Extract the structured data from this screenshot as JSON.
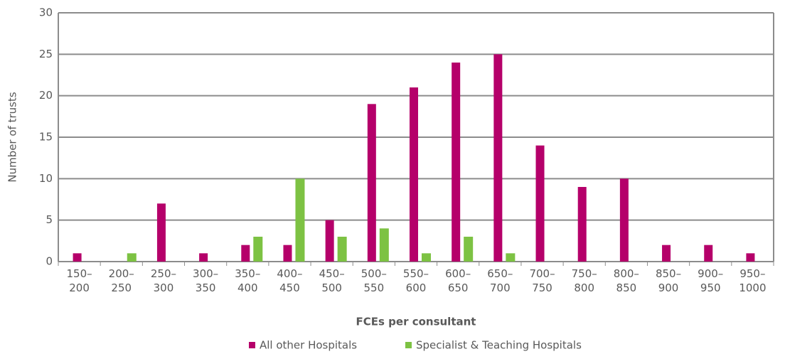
{
  "chart_data": {
    "type": "bar",
    "categories": [
      "150–200",
      "200–250",
      "250–300",
      "300–350",
      "350–400",
      "400–450",
      "450–500",
      "500–550",
      "550–600",
      "600–650",
      "650–700",
      "700–750",
      "750–800",
      "800–850",
      "850–900",
      "900–950",
      "950–1000"
    ],
    "series": [
      {
        "name": "All other Hospitals",
        "color": "#b5006a",
        "values": [
          1,
          0,
          7,
          1,
          2,
          2,
          5,
          19,
          21,
          24,
          25,
          14,
          9,
          10,
          2,
          2,
          1
        ]
      },
      {
        "name": "Specialist & Teaching Hospitals",
        "color": "#7dc243",
        "values": [
          0,
          1,
          0,
          0,
          3,
          10,
          3,
          4,
          1,
          3,
          1,
          0,
          0,
          0,
          0,
          0,
          0
        ]
      }
    ],
    "xlabel": "FCEs per consultant",
    "ylabel": "Number of trusts",
    "ylim": [
      0,
      30
    ],
    "yticks": [
      0,
      5,
      10,
      15,
      20,
      25,
      30
    ],
    "grid": true,
    "legend": "bottom"
  }
}
